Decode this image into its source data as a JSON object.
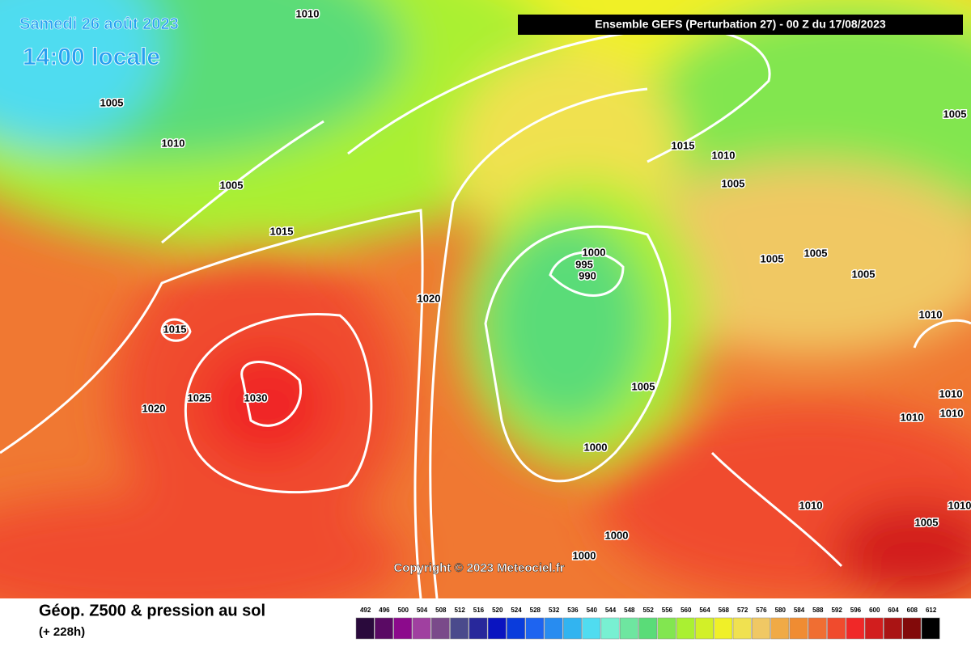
{
  "header": {
    "date": "Samedi 26 août 2023",
    "time": "14:00 locale",
    "model": "Ensemble GEFS  (Perturbation 27)  -  00 Z du 17/08/2023"
  },
  "isobar_labels": [
    "1010",
    "1005",
    "1010",
    "1005",
    "1015",
    "1015",
    "1020",
    "1025",
    "1030",
    "1020",
    "1000",
    "995",
    "990",
    "1015",
    "1010",
    "1005",
    "1005",
    "1005",
    "1005",
    "1010",
    "1005",
    "1005",
    "1000",
    "1010",
    "1010",
    "1010",
    "1010",
    "1005",
    "1000",
    "1000",
    "1010"
  ],
  "copyright": "Copyright © 2023 Meteociel.fr",
  "footer": {
    "title": "Géop. Z500 & pression au sol",
    "subtitle": "(+ 228h)"
  },
  "colorbar": {
    "values": [
      492,
      496,
      500,
      504,
      508,
      512,
      516,
      520,
      524,
      528,
      532,
      536,
      540,
      544,
      548,
      552,
      556,
      560,
      564,
      568,
      572,
      576,
      580,
      584,
      588,
      592,
      596,
      600,
      604,
      608,
      612
    ],
    "colors": [
      "#2a0a3c",
      "#5a0a64",
      "#8c0a8c",
      "#a040a0",
      "#7a4a8a",
      "#4a4a8c",
      "#28289b",
      "#0a14c0",
      "#0a3cdc",
      "#1e64f0",
      "#288cf0",
      "#32b4f0",
      "#50dcf0",
      "#78f0d2",
      "#6ee6a0",
      "#5adc78",
      "#82e650",
      "#aaf032",
      "#d2f028",
      "#f0f028",
      "#f0e150",
      "#f0c864",
      "#f0aa46",
      "#f08c32",
      "#f06e32",
      "#f04b2d",
      "#f02828",
      "#d21e1e",
      "#aa1414",
      "#820a0a",
      "#000000"
    ]
  }
}
